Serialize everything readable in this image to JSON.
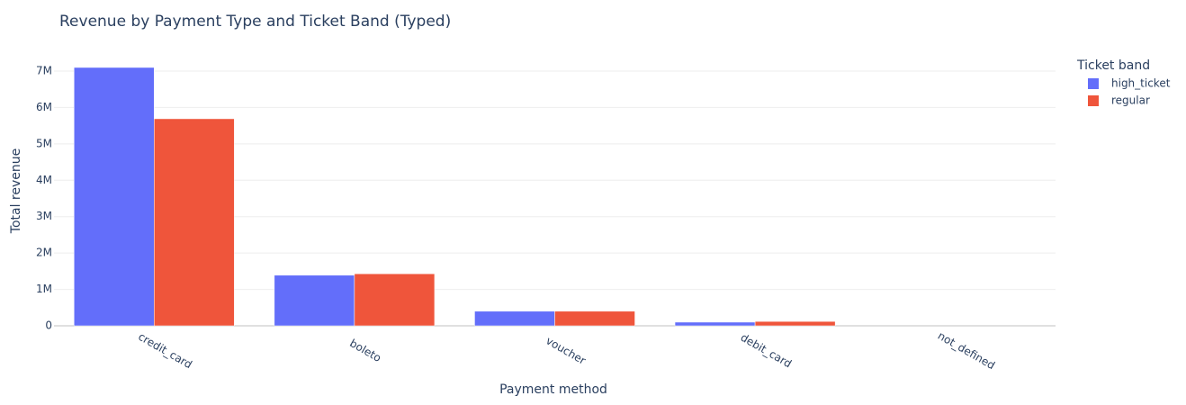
{
  "chart_data": {
    "type": "bar",
    "title": "Revenue by Payment Type and Ticket Band (Typed)",
    "x_label": "Payment method",
    "y_label": "Total revenue",
    "legend_title": "Ticket band",
    "legend_position": "right",
    "categories": [
      "credit_card",
      "boleto",
      "voucher",
      "debit_card",
      "not_defined"
    ],
    "series": [
      {
        "name": "high_ticket",
        "color": "#636efa",
        "values": [
          7100000,
          1390000,
          400000,
          100000,
          0
        ]
      },
      {
        "name": "regular",
        "color": "#ef553b",
        "values": [
          5690000,
          1430000,
          400000,
          120000,
          0
        ]
      }
    ],
    "ylim": [
      0,
      7470000
    ],
    "yticks": [
      0,
      {
        "value": 1000000,
        "label": "1M"
      },
      {
        "value": 2000000,
        "label": "2M"
      },
      {
        "value": 3000000,
        "label": "3M"
      },
      {
        "value": 4000000,
        "label": "4M"
      },
      {
        "value": 5000000,
        "label": "5M"
      },
      {
        "value": 6000000,
        "label": "6M"
      },
      {
        "value": 7000000,
        "label": "7M"
      }
    ],
    "grid": true
  }
}
